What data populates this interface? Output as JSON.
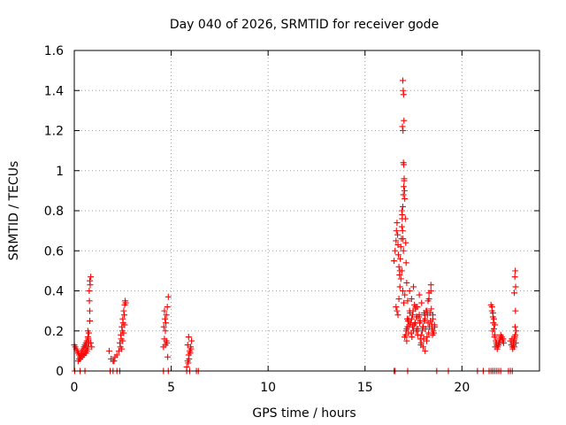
{
  "chart_data": {
    "type": "scatter",
    "title": "Day 040 of 2026, SRMTID for receiver gode",
    "xlabel": "GPS time / hours",
    "ylabel": "SRMTID / TECUs",
    "xlim": [
      0,
      24
    ],
    "ylim": [
      0,
      1.6
    ],
    "xticks": [
      0,
      5,
      10,
      15,
      20
    ],
    "xtick_labels": [
      "0",
      "5",
      "10",
      "15",
      "20"
    ],
    "yticks": [
      0,
      0.2,
      0.4,
      0.6,
      0.8,
      1,
      1.2,
      1.4,
      1.6
    ],
    "ytick_labels": [
      "0",
      "0.2",
      "0.4",
      "0.6",
      "0.8",
      "1",
      "1.2",
      "1.4",
      "1.6"
    ],
    "grid": true,
    "marker": "+",
    "color": "#ff0000",
    "series": [
      {
        "name": "SRMTID",
        "x": [
          0.0,
          0.05,
          0.1,
          0.15,
          0.2,
          0.25,
          0.3,
          0.35,
          0.4,
          0.45,
          0.5,
          0.55,
          0.6,
          0.65,
          0.7,
          0.75,
          0.3,
          0.4,
          0.5,
          0.6,
          0.65,
          0.7,
          0.75,
          0.8,
          0.8,
          0.78,
          0.77,
          0.82,
          0.8,
          0.85,
          0.7,
          0.72,
          0.6,
          0.55,
          0.45,
          0.35,
          0.25,
          0.2,
          0.02,
          0.3,
          0.55,
          0.7,
          0.9,
          0.85,
          0.62,
          1.8,
          1.9,
          2.0,
          2.05,
          2.1,
          2.2,
          2.3,
          2.35,
          2.4,
          2.45,
          2.5,
          2.55,
          2.6,
          2.65,
          2.38,
          2.42,
          2.48,
          2.52,
          2.58,
          2.45,
          2.5,
          2.55,
          2.6,
          2.62,
          1.85,
          2.0,
          2.2,
          2.35,
          4.6,
          4.65,
          4.7,
          4.72,
          4.75,
          4.8,
          4.85,
          4.7,
          4.75,
          4.62,
          4.68,
          4.78,
          4.82,
          4.65,
          4.6,
          4.85,
          5.8,
          5.85,
          5.9,
          5.95,
          6.0,
          6.05,
          5.88,
          5.92,
          5.98,
          6.02,
          5.85,
          5.9,
          5.8,
          5.95,
          6.3,
          6.4,
          16.5,
          16.55,
          16.6,
          16.62,
          16.65,
          16.68,
          16.7,
          16.72,
          16.75,
          16.78,
          16.8,
          16.82,
          16.85,
          16.88,
          16.9,
          16.92,
          16.95,
          16.98,
          17.0,
          17.02,
          17.05,
          17.08,
          17.1,
          17.12,
          17.15,
          16.95,
          16.97,
          16.99,
          17.01,
          16.93,
          16.96,
          16.98,
          17.0,
          17.02,
          17.04,
          16.9,
          16.92,
          16.94,
          16.96,
          16.98,
          16.6,
          16.65,
          16.7,
          16.75,
          16.8,
          16.85,
          16.9,
          16.95,
          17.0,
          17.05,
          17.1,
          17.2,
          17.3,
          17.4,
          17.5,
          17.6,
          17.7,
          17.8,
          17.9,
          18.0,
          18.1,
          18.2,
          18.3,
          18.4,
          18.5,
          18.6,
          17.15,
          17.25,
          17.35,
          17.45,
          17.55,
          17.65,
          17.75,
          17.85,
          17.95,
          18.05,
          18.15,
          18.25,
          18.35,
          18.45,
          18.55,
          17.2,
          17.3,
          17.4,
          17.5,
          17.6,
          17.7,
          17.8,
          17.9,
          18.0,
          18.1,
          18.2,
          18.3,
          18.4,
          18.5,
          17.12,
          17.22,
          17.32,
          17.42,
          17.52,
          17.62,
          17.72,
          17.82,
          17.92,
          18.02,
          18.12,
          18.22,
          18.32,
          18.42,
          18.52,
          17.18,
          17.28,
          17.38,
          17.48,
          17.58,
          17.68,
          17.78,
          17.88,
          17.98,
          18.08,
          18.18,
          18.28,
          18.38,
          18.48,
          18.58,
          17.05,
          17.15,
          17.25,
          17.45,
          17.65,
          17.85,
          18.05,
          18.25,
          18.45,
          16.5,
          16.55,
          17.2,
          18.7,
          19.3,
          21.5,
          21.55,
          21.6,
          21.62,
          21.65,
          21.7,
          21.75,
          21.8,
          21.85,
          21.9,
          21.95,
          22.0,
          22.05,
          22.1,
          22.15,
          21.55,
          21.6,
          21.65,
          21.7,
          21.58,
          21.68,
          21.78,
          21.88,
          21.98,
          22.08,
          21.72,
          21.82,
          21.92,
          22.02,
          22.12,
          21.6,
          21.7,
          21.8,
          21.9,
          22.0,
          22.5,
          22.55,
          22.6,
          22.65,
          22.7,
          22.75,
          22.8,
          22.62,
          22.68,
          22.72,
          22.78,
          22.58,
          22.66,
          22.74,
          22.76,
          22.7,
          22.73,
          22.75,
          22.77,
          22.7,
          20.8,
          21.1,
          21.4,
          21.5,
          21.6,
          22.4,
          22.5,
          22.6
        ],
        "y": [
          0.13,
          0.12,
          0.11,
          0.1,
          0.09,
          0.08,
          0.07,
          0.09,
          0.1,
          0.11,
          0.12,
          0.13,
          0.14,
          0.15,
          0.17,
          0.19,
          0.06,
          0.07,
          0.08,
          0.09,
          0.1,
          0.12,
          0.14,
          0.25,
          0.3,
          0.35,
          0.4,
          0.43,
          0.45,
          0.47,
          0.2,
          0.16,
          0.11,
          0.09,
          0.08,
          0.07,
          0.06,
          0.05,
          0.0,
          0.0,
          0.0,
          0.11,
          0.12,
          0.14,
          0.13,
          0.1,
          0.06,
          0.05,
          0.05,
          0.07,
          0.08,
          0.1,
          0.14,
          0.18,
          0.22,
          0.26,
          0.3,
          0.33,
          0.34,
          0.12,
          0.16,
          0.2,
          0.24,
          0.28,
          0.11,
          0.15,
          0.19,
          0.23,
          0.35,
          0.0,
          0.0,
          0.0,
          0.0,
          0.12,
          0.16,
          0.2,
          0.24,
          0.28,
          0.32,
          0.37,
          0.13,
          0.15,
          0.22,
          0.26,
          0.14,
          0.07,
          0.3,
          0.0,
          0.0,
          0.02,
          0.05,
          0.08,
          0.1,
          0.12,
          0.15,
          0.04,
          0.06,
          0.09,
          0.11,
          0.13,
          0.17,
          0.0,
          0.0,
          0.0,
          0.0,
          0.55,
          0.6,
          0.65,
          0.7,
          0.74,
          0.68,
          0.63,
          0.58,
          0.52,
          0.48,
          0.5,
          0.56,
          0.62,
          0.66,
          0.72,
          0.78,
          0.82,
          0.88,
          0.92,
          0.96,
          0.86,
          0.76,
          0.64,
          0.54,
          0.44,
          1.45,
          1.4,
          1.38,
          1.25,
          1.22,
          1.2,
          1.04,
          1.03,
          0.95,
          0.9,
          0.8,
          0.76,
          0.7,
          0.66,
          0.6,
          0.32,
          0.3,
          0.28,
          0.36,
          0.42,
          0.46,
          0.5,
          0.4,
          0.34,
          0.38,
          0.18,
          0.22,
          0.3,
          0.26,
          0.2,
          0.24,
          0.32,
          0.28,
          0.18,
          0.22,
          0.26,
          0.3,
          0.36,
          0.4,
          0.28,
          0.22,
          0.15,
          0.19,
          0.24,
          0.28,
          0.33,
          0.27,
          0.21,
          0.16,
          0.2,
          0.25,
          0.3,
          0.35,
          0.29,
          0.23,
          0.19,
          0.35,
          0.4,
          0.36,
          0.42,
          0.31,
          0.27,
          0.38,
          0.14,
          0.12,
          0.1,
          0.17,
          0.39,
          0.43,
          0.26,
          0.2,
          0.25,
          0.29,
          0.17,
          0.23,
          0.32,
          0.18,
          0.24,
          0.34,
          0.16,
          0.21,
          0.28,
          0.22,
          0.31,
          0.2,
          0.26,
          0.23,
          0.19,
          0.3,
          0.24,
          0.21,
          0.27,
          0.13,
          0.22,
          0.28,
          0.15,
          0.19,
          0.25,
          0.18,
          0.23,
          0.17,
          0.21,
          0.26,
          0.22,
          0.2,
          0.25,
          0.29,
          0.24,
          0.21,
          0.0,
          0.0,
          0.0,
          0.0,
          0.0,
          0.33,
          0.3,
          0.27,
          0.24,
          0.21,
          0.18,
          0.15,
          0.13,
          0.12,
          0.14,
          0.16,
          0.18,
          0.17,
          0.15,
          0.14,
          0.32,
          0.29,
          0.26,
          0.23,
          0.2,
          0.17,
          0.14,
          0.13,
          0.15,
          0.16,
          0.12,
          0.11,
          0.14,
          0.17,
          0.16,
          0.0,
          0.0,
          0.0,
          0.0,
          0.0,
          0.15,
          0.13,
          0.12,
          0.14,
          0.16,
          0.18,
          0.2,
          0.11,
          0.15,
          0.17,
          0.14,
          0.16,
          0.13,
          0.22,
          0.3,
          0.39,
          0.47,
          0.5,
          0.42,
          0.12,
          0.0,
          0.0,
          0.0,
          0.0,
          0.0,
          0.0,
          0.0,
          0.0
        ]
      }
    ]
  }
}
